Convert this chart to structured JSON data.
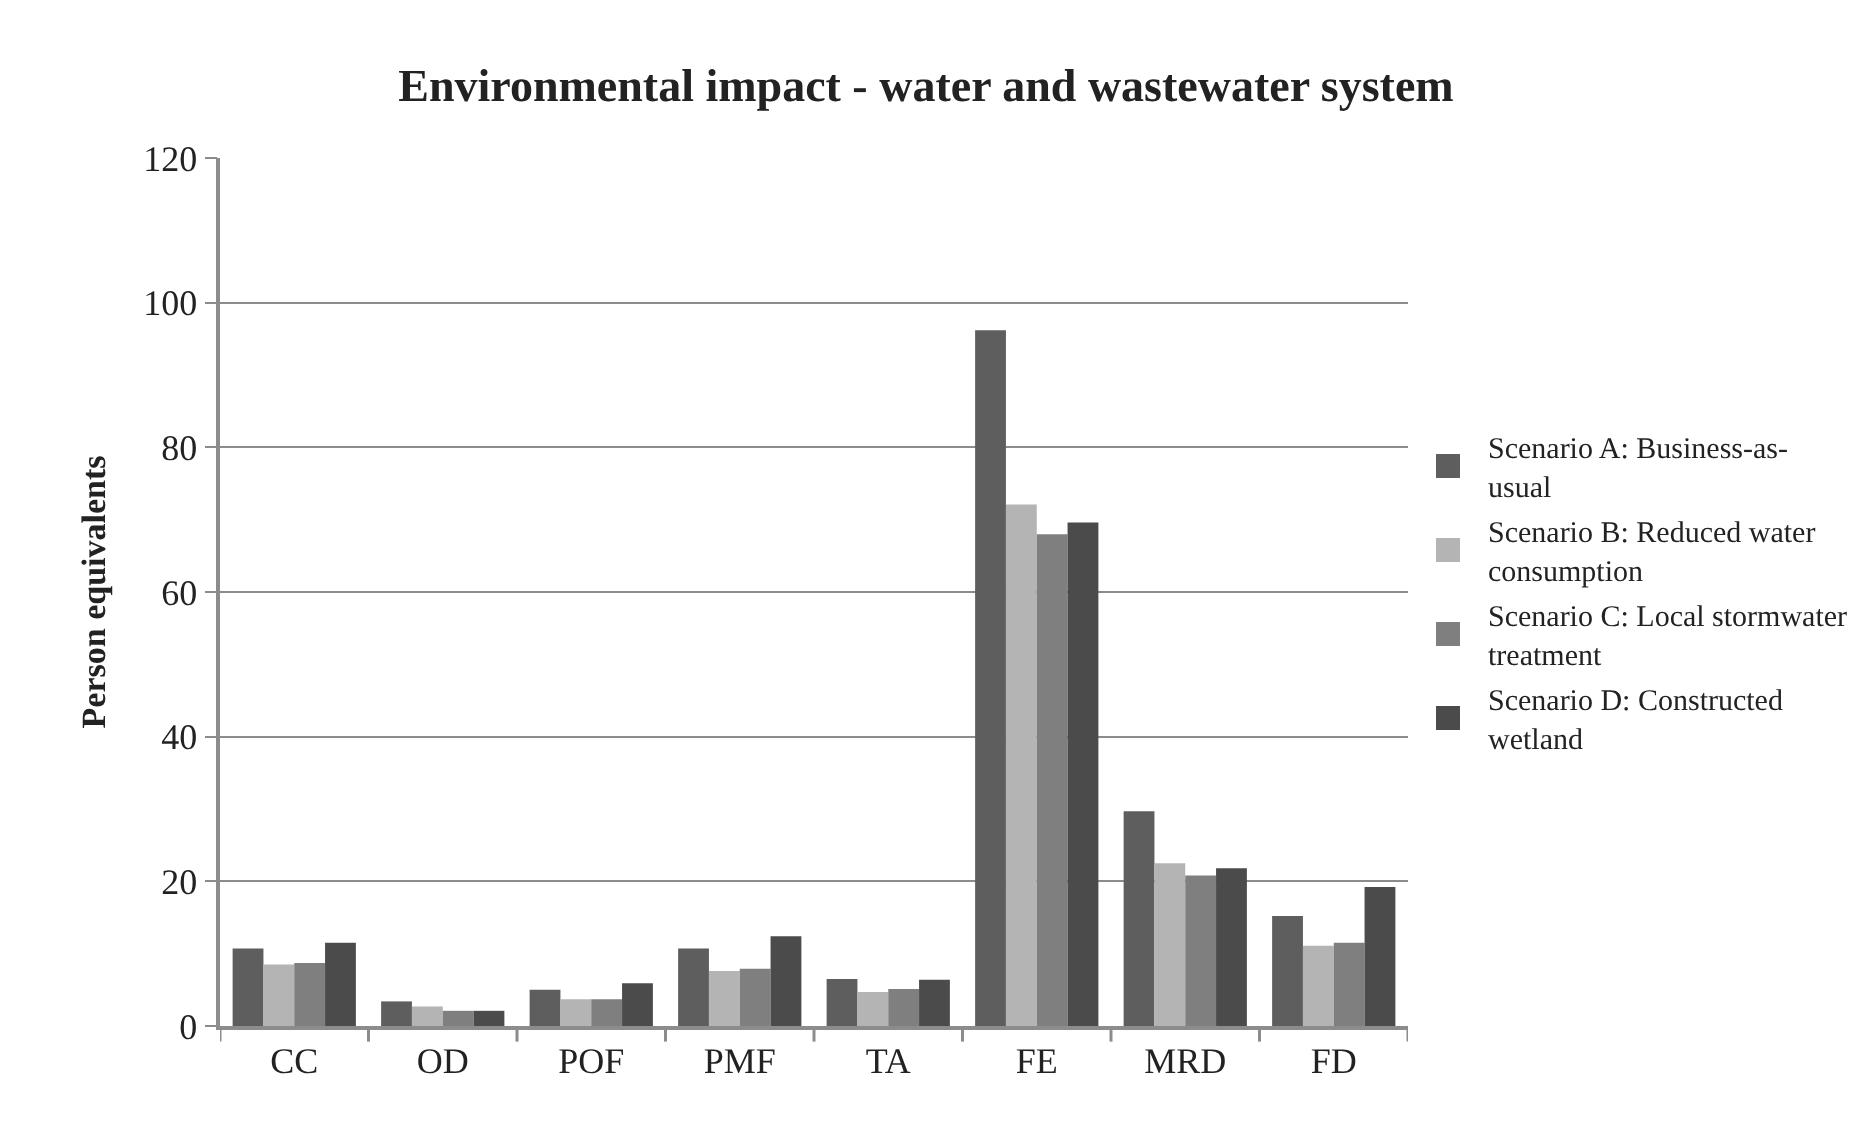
{
  "chart_data": {
    "type": "bar",
    "title": "Environmental impact - water and wastewater system",
    "ylabel": "Person equivalents",
    "categories": [
      "CC",
      "OD",
      "POF",
      "PMF",
      "TA",
      "FE",
      "MRD",
      "FD"
    ],
    "series": [
      {
        "name": "Scenario A: Business-as-usual",
        "color": "#5e5e5e",
        "values": [
          10.7,
          3.4,
          5.0,
          10.7,
          6.5,
          96.2,
          29.7,
          15.2
        ]
      },
      {
        "name": "Scenario B: Reduced water consumption",
        "color": "#b4b4b4",
        "values": [
          8.5,
          2.7,
          3.7,
          7.6,
          4.7,
          72.1,
          22.5,
          11.1
        ]
      },
      {
        "name": "Scenario C: Local stormwater treatment",
        "color": "#7f7f7f",
        "values": [
          8.7,
          2.1,
          3.7,
          7.9,
          5.1,
          68.0,
          20.8,
          11.5
        ]
      },
      {
        "name": "Scenario D: Constructed wetland",
        "color": "#4b4b4b",
        "values": [
          11.5,
          2.1,
          5.9,
          12.4,
          6.4,
          69.6,
          21.8,
          19.2
        ]
      }
    ],
    "ylim": [
      0,
      120
    ],
    "yticks": [
      0,
      20,
      40,
      60,
      80,
      100,
      120
    ],
    "grid": "y",
    "legend": "right"
  }
}
